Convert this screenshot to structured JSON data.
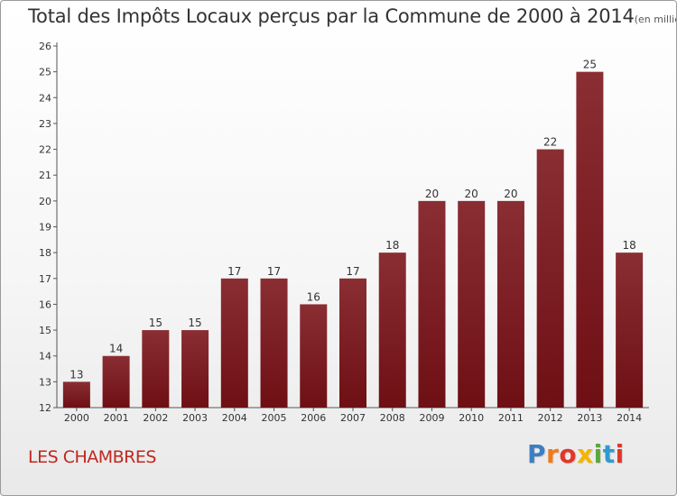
{
  "chart_data": {
    "type": "bar",
    "title": "Total des Impôts Locaux perçus par la Commune de 2000 à 2014",
    "unit": "(en milliers d'€)",
    "categories": [
      "2000",
      "2001",
      "2002",
      "2003",
      "2004",
      "2005",
      "2006",
      "2007",
      "2008",
      "2009",
      "2010",
      "2011",
      "2012",
      "2013",
      "2014"
    ],
    "values": [
      13,
      14,
      15,
      15,
      17,
      17,
      16,
      17,
      18,
      20,
      20,
      20,
      22,
      25,
      18
    ],
    "ylim": [
      12,
      26
    ],
    "yticks": [
      12,
      13,
      14,
      15,
      16,
      17,
      18,
      19,
      20,
      21,
      22,
      23,
      24,
      25,
      26
    ],
    "xlabel": "",
    "ylabel": "",
    "bar_color": "#6e0f14",
    "grid": false,
    "legend": "none"
  },
  "footer": {
    "commune": "LES CHAMBRES",
    "logo_letters": [
      "P",
      "r",
      "o",
      "x",
      "i",
      "t",
      "i"
    ],
    "logo_colors": [
      "#3d7fc1",
      "#f07a1a",
      "#e1372a",
      "#f4b400",
      "#59a83b",
      "#2e9ad0",
      "#e1372a"
    ]
  }
}
